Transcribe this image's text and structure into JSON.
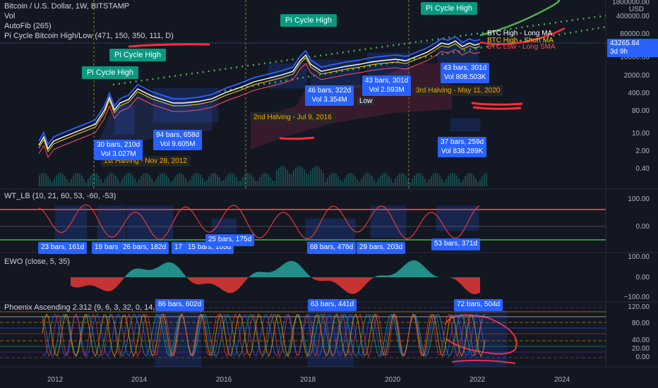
{
  "header": {
    "symbol_line": "Bitcoin / U.S. Dollar, 1W, BITSTAMP",
    "vol_line": "Vol",
    "autofib_line": "AutoFib (265)",
    "pi_cycle_line": "Pi Cycle Bitcoin High/Low (471, 150, 350, 111, D)"
  },
  "price_axis": {
    "currency": "USD",
    "ticks": [
      "1800000.00",
      "400000.00",
      "80000.00",
      "10000.00",
      "2000.00",
      "400.00",
      "80.00",
      "10.00",
      "2.00",
      "0.40"
    ],
    "current_price": "43265.84",
    "countdown": "3d 9h"
  },
  "wt_panel": {
    "title": "WT_LB (10, 21, 60, 53, -60, -53)",
    "ticks": [
      "100.00",
      "0.00"
    ]
  },
  "ewo_panel": {
    "title": "EWO (close, 5, 35)",
    "ticks": [
      "100.00",
      "0.00",
      "−100.00"
    ]
  },
  "phoenix_panel": {
    "title": "Phoenix Ascending 2.312 (9, 6, 3, 32, 0, 14, 3, 3, 3, 12, 3)",
    "ticks": [
      "120.00",
      "80.00",
      "40.00",
      "20.00",
      "0.00"
    ]
  },
  "time_axis": {
    "ticks": [
      "2012",
      "2014",
      "2016",
      "2018",
      "2020",
      "2022",
      "2024"
    ]
  },
  "pi_flags": [
    "Pi Cycle High",
    "Pi Cycle High",
    "Pi Cycle High",
    "Pi Cycle High"
  ],
  "halvings": {
    "first": "1st Halving - Nov 28, 2012",
    "second": "2nd Halving - Jul 9, 2016",
    "third": "3rd Halving - May 11, 2020"
  },
  "ma_labels": {
    "high_long": "BTC High - Long MA",
    "high_short": "BTC High - Short MA",
    "low_long": "BTC Low - Long SMA"
  },
  "main_boxes": [
    {
      "line1": "30 bars, 210d",
      "line2": "Vol 3.027M"
    },
    {
      "line1": "94 bars, 658d",
      "line2": "Vol 9.605M"
    },
    {
      "line1": "46 bars, 322d",
      "line2": "Vol 3.354M"
    },
    {
      "line1": "43 bars, 301d",
      "line2": "Vol 2.593M"
    },
    {
      "line1": "43 bars, 301d",
      "line2": "Vol 808.503K"
    },
    {
      "line1": "37 bars, 259d",
      "line2": "Vol 838.289K"
    }
  ],
  "main_misc": {
    "low_fragment": "Low"
  },
  "wt_boxes": [
    "23 bars, 161d",
    "19 bars",
    "26 bars, 182d",
    "17",
    "15 bars, 105d",
    "25 bars, 175d",
    "68 bars, 476d",
    "29 bars, 203d",
    "53 bars, 371d"
  ],
  "phoenix_boxes": [
    "86 bars, 602d",
    "63 bars, 441d",
    "72 bars, 504d"
  ],
  "colors": {
    "background": "#131722",
    "pi_flag": "#089981",
    "box_label": "#2962ff",
    "price_white": "#ffffff",
    "halving_text": "#f7a600",
    "green_dotted": "#4caf50",
    "annotation_red": "#ff2b3a"
  }
}
